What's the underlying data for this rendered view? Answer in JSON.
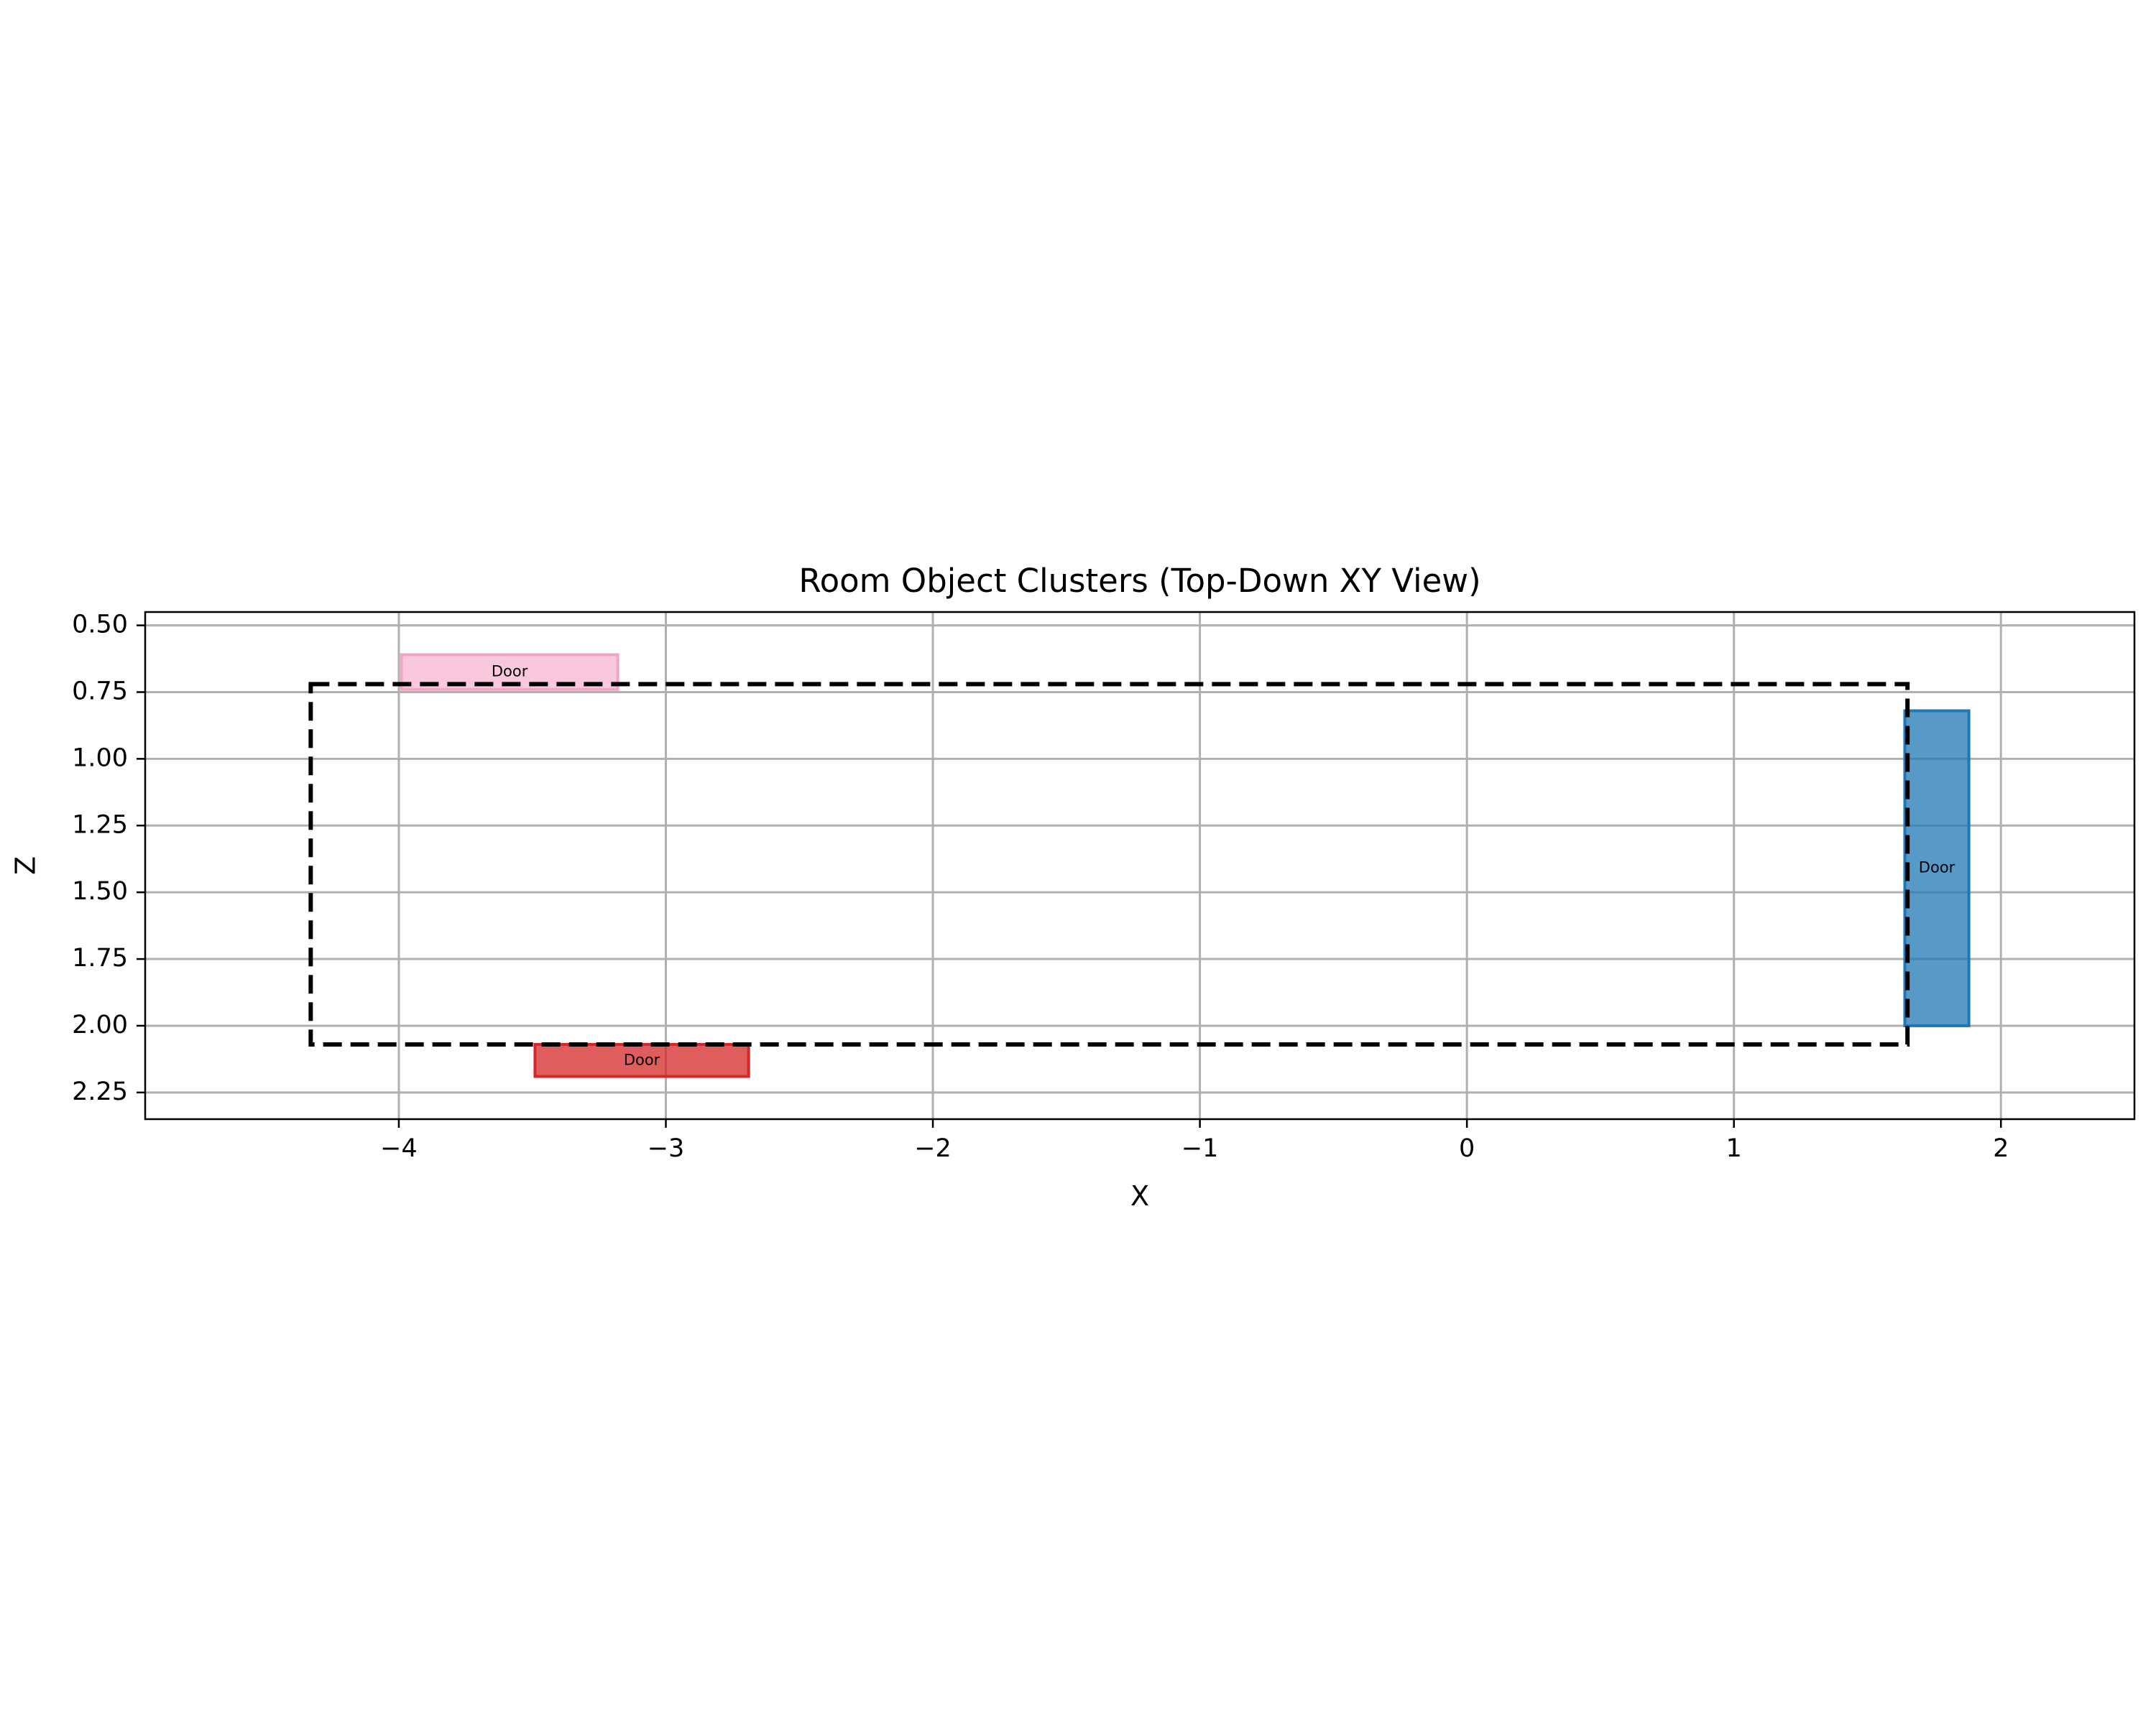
{
  "chart_data": {
    "type": "scatter",
    "title": "Room Object Clusters (Top-Down XY View)",
    "xlabel": "X",
    "ylabel": "Z",
    "xlim": [
      -4.95,
      2.5
    ],
    "ylim": [
      2.35,
      0.45
    ],
    "y_inverted": true,
    "grid": true,
    "x_ticks": [
      -4,
      -3,
      -2,
      -1,
      0,
      1,
      2
    ],
    "x_tick_labels": [
      "−4",
      "−3",
      "−2",
      "−1",
      "0",
      "1",
      "2"
    ],
    "y_ticks": [
      0.5,
      0.75,
      1.0,
      1.25,
      1.5,
      1.75,
      2.0,
      2.25
    ],
    "y_tick_labels": [
      "0.50",
      "0.75",
      "1.00",
      "1.25",
      "1.50",
      "1.75",
      "2.00",
      "2.25"
    ],
    "room_boundary": {
      "x_min": -4.33,
      "x_max": 1.65,
      "z_min": 0.72,
      "z_max": 2.07,
      "style": "dashed",
      "color": "#000000"
    },
    "objects": [
      {
        "label": "Door",
        "x_min": -3.99,
        "x_max": -3.18,
        "z_min": 0.61,
        "z_max": 0.74,
        "color": "#f7b6d2",
        "edge": "#f2a5c8",
        "opacity": 0.75
      },
      {
        "label": "Door",
        "x_min": -3.49,
        "x_max": -2.69,
        "z_min": 2.07,
        "z_max": 2.19,
        "color": "#d62728",
        "edge": "#d62728",
        "opacity": 0.75
      },
      {
        "label": "Door",
        "x_min": 1.64,
        "x_max": 1.88,
        "z_min": 0.82,
        "z_max": 2.0,
        "color": "#1f77b4",
        "edge": "#1f77b4",
        "opacity": 0.75
      }
    ]
  }
}
